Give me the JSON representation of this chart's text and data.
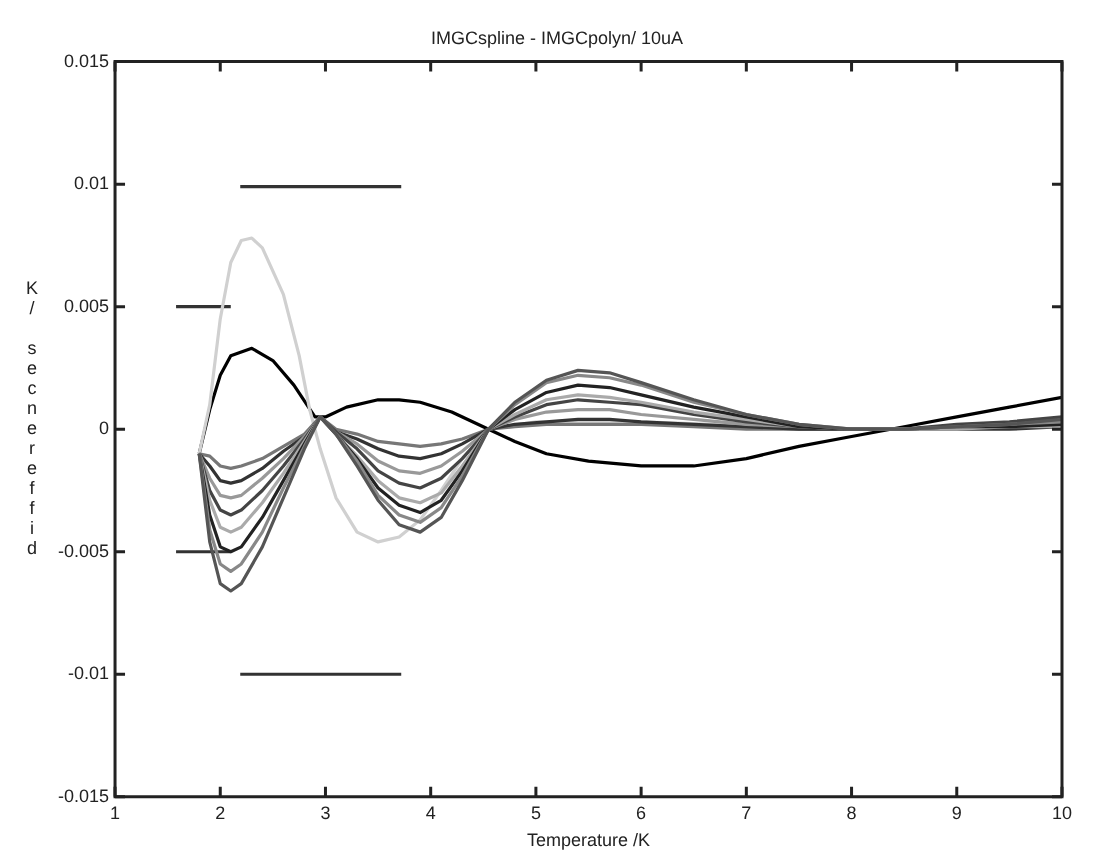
{
  "chart_data": {
    "type": "line",
    "title": "IMGCspline - IMGCpolyn/ 10uA",
    "xlabel": "Temperature /K",
    "ylabel": "K/ secnereffid",
    "x": [
      1.8,
      1.9,
      2.0,
      2.1,
      2.2,
      2.4,
      2.6,
      2.8,
      2.95,
      3.1,
      3.3,
      3.5,
      3.7,
      3.9,
      4.1,
      4.3,
      4.55,
      4.8,
      5.1,
      5.4,
      5.7,
      6,
      6.5,
      7,
      7.5,
      8,
      8.5,
      9,
      9.5,
      10
    ],
    "series": [
      {
        "color": "#555555",
        "values": [
          -0.001,
          -0.0046,
          -0.0063,
          -0.0066,
          -0.0063,
          -0.0048,
          -0.0028,
          -0.0008,
          0.0005,
          -0.0002,
          -0.0015,
          -0.0029,
          -0.0039,
          -0.0042,
          -0.0036,
          -0.0021,
          0,
          0.0011,
          0.002,
          0.0024,
          0.0023,
          0.0019,
          0.0012,
          0.0006,
          0.0002,
          0,
          0,
          0.0001,
          0.0002,
          0.0004
        ]
      },
      {
        "color": "#888888",
        "values": [
          -0.001,
          -0.0041,
          -0.0055,
          -0.0058,
          -0.0055,
          -0.0042,
          -0.0024,
          -0.0007,
          0.0005,
          -0.0002,
          -0.0013,
          -0.0027,
          -0.0035,
          -0.0038,
          -0.0032,
          -0.0019,
          0,
          0.001,
          0.0019,
          0.0022,
          0.0021,
          0.0018,
          0.0011,
          0.0006,
          0.0002,
          0,
          0,
          0.0001,
          0.0002,
          0.0003
        ]
      },
      {
        "color": "#222222",
        "values": [
          -0.001,
          -0.0035,
          -0.0048,
          -0.005,
          -0.0048,
          -0.0036,
          -0.0021,
          -0.0006,
          0.0005,
          -0.0002,
          -0.0012,
          -0.0024,
          -0.0031,
          -0.0034,
          -0.0029,
          -0.0017,
          0,
          0.0008,
          0.0015,
          0.0018,
          0.0017,
          0.0014,
          0.0009,
          0.0005,
          0.0001,
          0,
          0,
          0.0001,
          0.0001,
          0.0002
        ]
      },
      {
        "color": "#aaaaaa",
        "values": [
          -0.001,
          -0.0029,
          -0.004,
          -0.0042,
          -0.004,
          -0.003,
          -0.0018,
          -0.0005,
          0.0005,
          -0.0002,
          -0.0011,
          -0.0021,
          -0.0028,
          -0.003,
          -0.0026,
          -0.0015,
          0,
          0.0006,
          0.0012,
          0.0014,
          0.0013,
          0.0011,
          0.0007,
          0.0004,
          0.0001,
          0,
          0,
          0,
          0.0001,
          0.0001
        ]
      },
      {
        "color": "#444444",
        "values": [
          -0.001,
          -0.0025,
          -0.0033,
          -0.0035,
          -0.0033,
          -0.0025,
          -0.0015,
          -0.0004,
          0.0005,
          -0.0001,
          -0.0008,
          -0.0017,
          -0.0022,
          -0.0024,
          -0.002,
          -0.0012,
          0,
          0.0005,
          0.001,
          0.0012,
          0.0011,
          0.001,
          0.0006,
          0.0003,
          0.0001,
          0,
          0,
          0.0002,
          0.0003,
          0.0005
        ]
      },
      {
        "color": "#999999",
        "values": [
          -0.001,
          -0.002,
          -0.0027,
          -0.0028,
          -0.0027,
          -0.002,
          -0.0012,
          -0.0003,
          0.0005,
          -0.0001,
          -0.0006,
          -0.0013,
          -0.0017,
          -0.0018,
          -0.0015,
          -0.0009,
          0,
          0.0004,
          0.0007,
          0.0008,
          0.0008,
          0.0006,
          0.0004,
          0.0002,
          0.0001,
          0,
          0,
          0.0001,
          0.0001,
          0.0002
        ]
      },
      {
        "color": "#333333",
        "values": [
          -0.001,
          -0.0015,
          -0.0021,
          -0.0022,
          -0.0021,
          -0.0016,
          -0.0009,
          -0.0003,
          0.0005,
          -0.0001,
          -0.0004,
          -0.0008,
          -0.0011,
          -0.0012,
          -0.001,
          -0.0006,
          0,
          0.0002,
          0.0003,
          0.0004,
          0.0004,
          0.0003,
          0.0002,
          0.0001,
          0,
          0,
          0,
          0,
          0,
          0.0001
        ]
      },
      {
        "color": "#777777",
        "values": [
          -0.001,
          -0.0011,
          -0.0015,
          -0.0016,
          -0.0015,
          -0.0012,
          -0.0007,
          -0.0002,
          0.0005,
          0,
          -0.0002,
          -0.0005,
          -0.0006,
          -0.0007,
          -0.0006,
          -0.0004,
          0,
          0.0001,
          0.0002,
          0.0002,
          0.0002,
          0.0002,
          0.0001,
          0,
          0,
          0,
          0,
          0.0001,
          0.0002,
          0.0003
        ]
      },
      {
        "color": "#d0d0d0",
        "x": [
          1.8,
          1.9,
          2.0,
          2.1,
          2.2,
          2.3,
          2.4,
          2.6,
          2.75,
          2.85,
          2.95,
          3.1,
          3.3,
          3.5,
          3.7,
          3.9,
          4.1,
          4.3,
          4.55,
          5,
          6,
          8
        ],
        "values": [
          -0.001,
          0.001,
          0.0045,
          0.0068,
          0.0077,
          0.0078,
          0.0074,
          0.0055,
          0.003,
          0.0008,
          -0.0008,
          -0.0028,
          -0.0042,
          -0.0046,
          -0.0044,
          -0.0037,
          -0.0025,
          -0.0012,
          0,
          0.0003,
          0.0003,
          0
        ]
      },
      {
        "color": "#000000",
        "x": [
          1.8,
          1.9,
          2.0,
          2.1,
          2.3,
          2.5,
          2.7,
          2.9,
          3.0,
          3.2,
          3.5,
          3.7,
          3.9,
          4.2,
          4.55,
          4.8,
          5.1,
          5.5,
          6,
          6.5,
          7,
          7.5,
          8,
          8.5,
          9,
          9.5,
          10
        ],
        "values": [
          -0.001,
          0.0008,
          0.0022,
          0.003,
          0.0033,
          0.0028,
          0.0018,
          0.0005,
          0.0005,
          0.0009,
          0.0012,
          0.0012,
          0.0011,
          0.0007,
          0,
          -0.0005,
          -0.001,
          -0.0013,
          -0.0015,
          -0.0015,
          -0.0012,
          -0.0007,
          -0.0003,
          0.0001,
          0.0005,
          0.0009,
          0.0013
        ]
      },
      {
        "color": "#333333",
        "x": [
          2.19,
          3.72
        ],
        "values": [
          0.0099,
          0.0099
        ]
      },
      {
        "color": "#333333",
        "x": [
          1.58,
          2.1
        ],
        "values": [
          0.005,
          0.005
        ]
      },
      {
        "color": "#333333",
        "x": [
          1.58,
          2.1
        ],
        "values": [
          -0.005,
          -0.005
        ]
      },
      {
        "color": "#333333",
        "x": [
          2.19,
          3.72
        ],
        "values": [
          -0.01,
          -0.01
        ]
      }
    ],
    "xlim": [
      1,
      10
    ],
    "xticks": [
      1,
      2,
      3,
      4,
      5,
      6,
      7,
      8,
      9,
      10
    ],
    "ylim": [
      -0.015,
      0.015
    ],
    "yticks": [
      -0.015,
      -0.01,
      -0.005,
      0,
      0.005,
      0.01,
      0.015
    ],
    "grid": false,
    "legend": false,
    "marker": "none",
    "line_style": "solid"
  }
}
